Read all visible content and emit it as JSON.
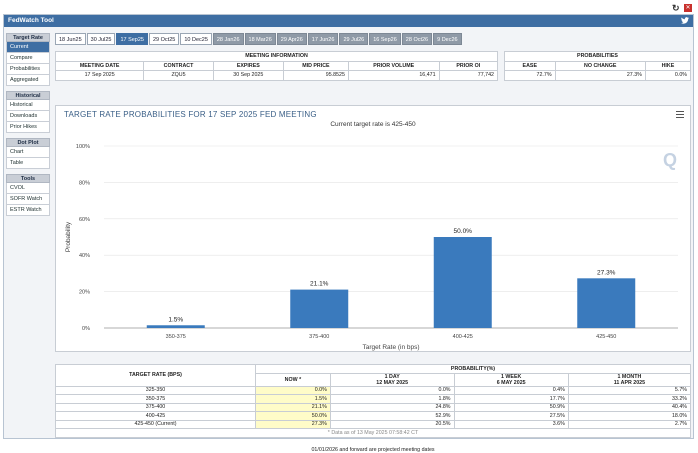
{
  "window": {
    "title": "FedWatch Tool",
    "twitter_icon": "twitter-icon",
    "refresh_icon": "refresh-icon",
    "close_icon": "close-icon"
  },
  "sidebar": {
    "groups": [
      {
        "title": "Target Rate",
        "items": [
          {
            "label": "Current",
            "active": true
          },
          {
            "label": "Compare"
          },
          {
            "label": "Probabilities"
          },
          {
            "label": "Aggregated"
          }
        ]
      },
      {
        "title": "Historical",
        "items": [
          {
            "label": "Historical"
          },
          {
            "label": "Downloads"
          },
          {
            "label": "Prior Hikes"
          }
        ]
      },
      {
        "title": "Dot Plot",
        "items": [
          {
            "label": "Chart"
          },
          {
            "label": "Table"
          }
        ]
      },
      {
        "title": "Tools",
        "items": [
          {
            "label": "CVOL"
          },
          {
            "label": "SOFR Watch"
          },
          {
            "label": "ESTR Watch"
          }
        ]
      }
    ]
  },
  "tabs": [
    {
      "label": "18 Jun25",
      "state": "past"
    },
    {
      "label": "30 Jul25",
      "state": "past"
    },
    {
      "label": "17 Sep25",
      "state": "selected"
    },
    {
      "label": "29 Oct25",
      "state": "past"
    },
    {
      "label": "10 Dec25",
      "state": "past"
    },
    {
      "label": "28 Jan26",
      "state": "future"
    },
    {
      "label": "18 Mar26",
      "state": "future"
    },
    {
      "label": "29 Apr26",
      "state": "future"
    },
    {
      "label": "17 Jun26",
      "state": "future"
    },
    {
      "label": "29 Jul26",
      "state": "future"
    },
    {
      "label": "16 Sep26",
      "state": "future"
    },
    {
      "label": "28 Oct26",
      "state": "future"
    },
    {
      "label": "9 Dec26",
      "state": "future"
    }
  ],
  "meeting_info": {
    "title": "MEETING INFORMATION",
    "headers": [
      "MEETING DATE",
      "CONTRACT",
      "EXPIRES",
      "MID PRICE",
      "PRIOR VOLUME",
      "PRIOR OI"
    ],
    "values": [
      "17 Sep 2025",
      "ZQU5",
      "30 Sep 2025",
      "95.8525",
      "16,471",
      "77,742"
    ]
  },
  "probabilities": {
    "title": "PROBABILITIES",
    "headers": [
      "EASE",
      "NO CHANGE",
      "HIKE"
    ],
    "values": [
      "72.7%",
      "27.3%",
      "0.0%"
    ]
  },
  "chart": {
    "title": "TARGET RATE PROBABILITIES FOR 17 SEP 2025 FED MEETING",
    "subtitle": "Current target rate is 425-450",
    "watermark": "Q"
  },
  "chart_data": {
    "type": "bar",
    "categories": [
      "350-375",
      "375-400",
      "400-425",
      "425-450"
    ],
    "values": [
      1.5,
      21.1,
      50.0,
      27.3
    ],
    "value_labels": [
      "1.5%",
      "21.1%",
      "50.0%",
      "27.3%"
    ],
    "xlabel": "Target Rate (in bps)",
    "ylabel": "Probability",
    "ylim": [
      0,
      100
    ],
    "yticks": [
      "0%",
      "20%",
      "40%",
      "60%",
      "80%",
      "100%"
    ],
    "bar_color": "#3a7abd",
    "grid": true
  },
  "bottom_table": {
    "col1_header": "TARGET RATE (BPS)",
    "prob_header": "PROBABILITY(%)",
    "sub_headers": [
      {
        "line1": "NOW *",
        "line2": ""
      },
      {
        "line1": "1 DAY",
        "line2": "12 MAY 2025"
      },
      {
        "line1": "1 WEEK",
        "line2": "6 MAY 2025"
      },
      {
        "line1": "1 MONTH",
        "line2": "11 APR 2025"
      }
    ],
    "rows": [
      {
        "rate": "325-350",
        "vals": [
          "0.0%",
          "0.0%",
          "0.4%",
          "5.7%"
        ]
      },
      {
        "rate": "350-375",
        "vals": [
          "1.5%",
          "1.8%",
          "17.7%",
          "33.2%"
        ]
      },
      {
        "rate": "375-400",
        "vals": [
          "21.1%",
          "24.8%",
          "50.9%",
          "40.4%"
        ]
      },
      {
        "rate": "400-425",
        "vals": [
          "50.0%",
          "52.9%",
          "27.5%",
          "18.0%"
        ]
      },
      {
        "rate": "425-450 (Current)",
        "vals": [
          "27.3%",
          "20.5%",
          "3.6%",
          "2.7%"
        ]
      }
    ],
    "data_as_of": "* Data as of 13 May 2025 07:58:42 CT"
  },
  "footnote": "01/01/2026 and forward are projected meeting dates"
}
